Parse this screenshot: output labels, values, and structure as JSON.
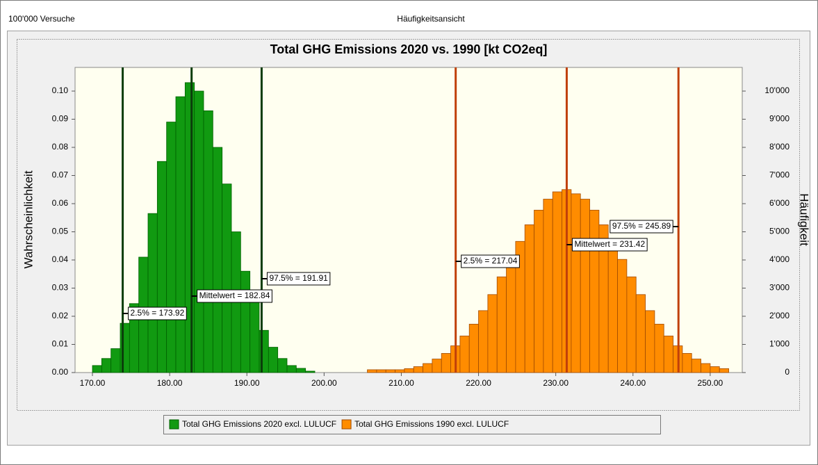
{
  "chart_data": {
    "type": "histogram",
    "header_left": "100'000 Versuche",
    "header_center": "Häufigkeitsansicht",
    "title": "Total GHG Emissions 2020 vs. 1990 [kt CO2eq]",
    "ylabel": "Wahrscheinlichkeit",
    "y2label": "Häufigkeit",
    "xlim": [
      167.75,
      254.15
    ],
    "xticks": [
      {
        "value": 170,
        "label": "170.00"
      },
      {
        "value": 180,
        "label": "180.00"
      },
      {
        "value": 190,
        "label": "190.00"
      },
      {
        "value": 200,
        "label": "200.00"
      },
      {
        "value": 210,
        "label": "210.00"
      },
      {
        "value": 220,
        "label": "220.00"
      },
      {
        "value": 230,
        "label": "230.00"
      },
      {
        "value": 240,
        "label": "240.00"
      },
      {
        "value": 250,
        "label": "250.00"
      }
    ],
    "ylim": [
      0,
      0.1084
    ],
    "yticks": [
      {
        "value": 0,
        "label": "0.00"
      },
      {
        "value": 0.01,
        "label": "0.01"
      },
      {
        "value": 0.02,
        "label": "0.02"
      },
      {
        "value": 0.03,
        "label": "0.03"
      },
      {
        "value": 0.04,
        "label": "0.04"
      },
      {
        "value": 0.05,
        "label": "0.05"
      },
      {
        "value": 0.06,
        "label": "0.06"
      },
      {
        "value": 0.07,
        "label": "0.07"
      },
      {
        "value": 0.08,
        "label": "0.08"
      },
      {
        "value": 0.09,
        "label": "0.09"
      },
      {
        "value": 0.1,
        "label": "0.10"
      }
    ],
    "y2lim": [
      0,
      10840
    ],
    "y2ticks": [
      0,
      {
        "value": 1000,
        "label": "1'000"
      },
      {
        "value": 2000,
        "label": "2'000"
      },
      {
        "value": 3000,
        "label": "3'000"
      },
      {
        "value": 4000,
        "label": "4'000"
      },
      {
        "value": 5000,
        "label": "5'000"
      },
      {
        "value": 6000,
        "label": "6'000"
      },
      {
        "value": 7000,
        "label": "7'000"
      },
      {
        "value": 8000,
        "label": "8'000"
      },
      {
        "value": 9000,
        "label": "9'000"
      },
      {
        "value": 10000,
        "label": "10'000"
      }
    ],
    "legend": "bottom",
    "series": [
      {
        "name": "Total GHG Emissions 2020 excl. LULUCF",
        "color": "#119a11",
        "edge_color": "#006000",
        "line_color": "#0b3d0b",
        "label_color": "#000000",
        "bins": [
          170.0,
          171.2,
          172.4,
          173.6,
          174.8,
          176.0,
          177.2,
          178.4,
          179.6,
          180.8,
          182.0,
          183.2,
          184.4,
          185.6,
          186.8,
          188.0,
          189.2,
          190.4,
          191.6,
          192.8,
          194.0,
          195.2,
          196.4,
          197.6,
          198.8
        ],
        "values": [
          0.0025,
          0.005,
          0.0085,
          0.0175,
          0.0245,
          0.041,
          0.0565,
          0.075,
          0.089,
          0.098,
          0.103,
          0.1,
          0.093,
          0.08,
          0.067,
          0.05,
          0.036,
          0.029,
          0.015,
          0.009,
          0.005,
          0.0025,
          0.0015,
          0.0005
        ],
        "markers": [
          {
            "label": "2.5% = 173.92",
            "value": 173.92
          },
          {
            "label": "Mittelwert = 182.84",
            "value": 182.84
          },
          {
            "label": "97.5% = 191.91",
            "value": 191.91
          }
        ]
      },
      {
        "name": "Total GHG Emissions 1990 excl. LULUCF",
        "color": "#ff8c00",
        "edge_color": "#a04a00",
        "line_color": "#c0400a",
        "label_color": "#a52a2a",
        "bins": [
          205.6,
          206.8,
          208.0,
          209.2,
          210.4,
          211.6,
          212.8,
          214.0,
          215.2,
          216.4,
          217.6,
          218.8,
          220.0,
          221.2,
          222.4,
          223.6,
          224.8,
          226.0,
          227.2,
          228.4,
          229.6,
          230.8,
          232.0,
          233.2,
          234.4,
          235.6,
          236.8,
          238.0,
          239.2,
          240.4,
          241.6,
          242.8,
          244.0,
          245.2,
          246.4,
          247.6,
          248.8,
          250.0,
          251.2,
          252.4
        ],
        "values": [
          0.001,
          0.001,
          0.001,
          0.001,
          0.0014,
          0.0021,
          0.0032,
          0.0048,
          0.0068,
          0.0095,
          0.013,
          0.0172,
          0.022,
          0.0277,
          0.034,
          0.0402,
          0.0466,
          0.0525,
          0.0577,
          0.0616,
          0.0642,
          0.065,
          0.0635,
          0.0616,
          0.0577,
          0.0525,
          0.0466,
          0.0402,
          0.034,
          0.0277,
          0.022,
          0.0172,
          0.013,
          0.0095,
          0.0068,
          0.0048,
          0.0032,
          0.0021,
          0.0014
        ],
        "markers": [
          {
            "label": "2.5% = 217.04",
            "value": 217.04
          },
          {
            "label": "Mittelwert = 231.42",
            "value": 231.42
          },
          {
            "label": "97.5% = 245.89",
            "value": 245.89
          }
        ]
      }
    ]
  }
}
